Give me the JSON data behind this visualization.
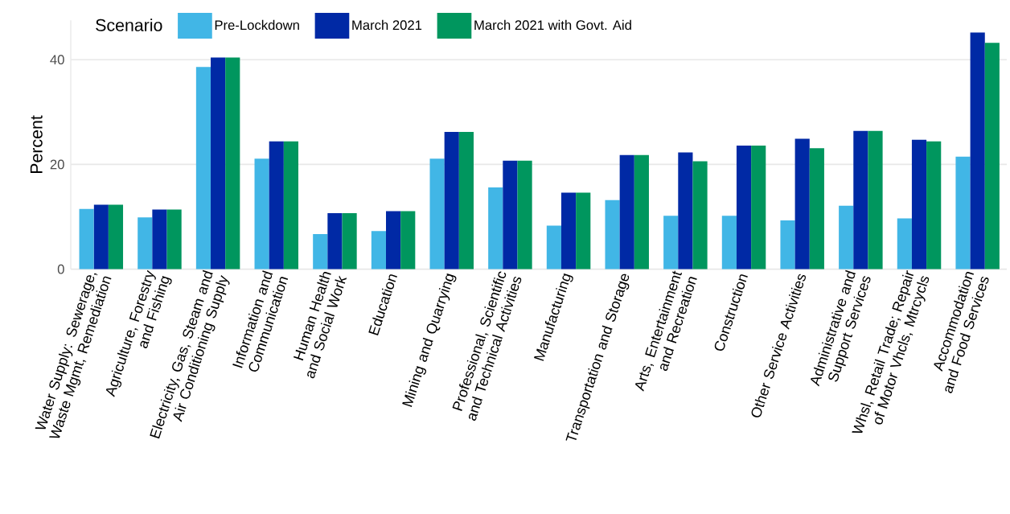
{
  "chart_data": {
    "type": "bar",
    "ylabel": "Percent",
    "legend_title": "Scenario",
    "categories": [
      "Water Supply: Sewerage, Waste Mgmt, Remediation",
      "Agriculture, Forestry and Fishing",
      "Electricity, Gas, Steam and Air Conditioning Supply",
      "Information and Communication",
      "Human Health and Social Work",
      "Education",
      "Mining and Quarrying",
      "Professional, Scientific and Technical Activities",
      "Manufacturing",
      "Transportation and Storage",
      "Arts, Entertainment and Recreation",
      "Construction",
      "Other Service Activities",
      "Administrative and Support Services",
      "Whsl, Retail Trade; Repair of Motor Vhcls, Mtrcycls",
      "Accommodation and Food Services"
    ],
    "series": [
      {
        "name": "Pre-Lockdown",
        "color": "#41b6e6",
        "values": [
          11.5,
          9.9,
          38.6,
          21.1,
          6.7,
          7.3,
          21.1,
          15.6,
          8.3,
          13.2,
          10.2,
          10.2,
          9.3,
          12.1,
          9.7,
          21.5
        ]
      },
      {
        "name": "March 2021",
        "color": "#0029a5",
        "values": [
          12.3,
          11.4,
          40.4,
          24.4,
          10.7,
          11.1,
          26.2,
          20.7,
          14.6,
          21.8,
          22.3,
          23.6,
          24.9,
          26.4,
          24.7,
          45.2
        ]
      },
      {
        "name": "March 2021 with Govt. Aid",
        "color": "#00965e",
        "values": [
          12.3,
          11.4,
          40.4,
          24.4,
          10.7,
          11.1,
          26.2,
          20.7,
          14.6,
          21.8,
          20.6,
          23.6,
          23.1,
          26.4,
          24.4,
          43.2
        ]
      }
    ],
    "ylim": [
      0,
      47.5
    ],
    "yticks": [
      0,
      20,
      40
    ],
    "grid": "y",
    "legend": "top"
  }
}
